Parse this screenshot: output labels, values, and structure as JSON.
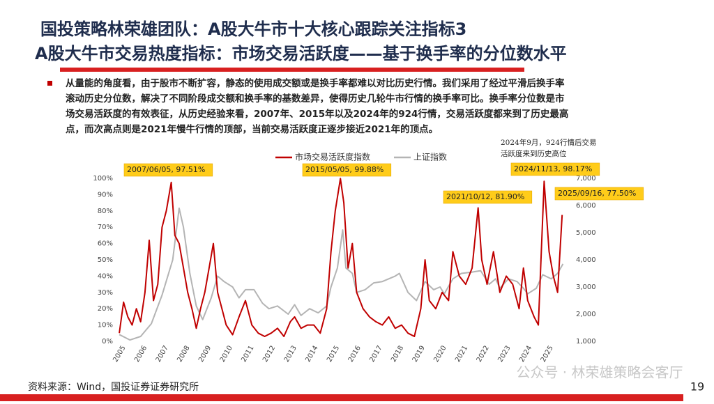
{
  "slide": {
    "title_lines": [
      "国投策略林荣雄团队：A股大牛市十大核心跟踪关注指标3",
      "A股大牛市交易热度指标：市场交易活跃度——基于换手率的分位数水平"
    ],
    "bullet_lines": [
      "从量能的角度看，由于股市不断扩容，静态的使用成交额或是换手率都难以对比历史行情。我们采用了经过平滑后换手率",
      "滚动历史分位数，解决了不同阶段成交额和换手率的基数差异，使得历史几轮牛市行情的换手率可比。换手率分位数是市",
      "场交易活跃度的有效表征，从历史经验来看，2007年、2015年以及2024年的924行情，交易活跃度都来到了历史最高",
      "点，而次高点则是2021年慢牛行情的顶部，当前交易活跃度正逐步接近2021年的顶点。"
    ],
    "source": "资料来源：Wind，国投证券证券研究所",
    "watermark": "公众号 · 林荣雄策略会客厅",
    "page_number": "19"
  },
  "chart_data": {
    "type": "line",
    "xlim": [
      2004.9,
      2025.9
    ],
    "xticks": [
      2005,
      2006,
      2007,
      2008,
      2009,
      2010,
      2011,
      2012,
      2013,
      2014,
      2015,
      2016,
      2017,
      2018,
      2019,
      2020,
      2021,
      2022,
      2023,
      2024,
      2025
    ],
    "ylim": [
      0,
      100
    ],
    "yticks": [
      {
        "value": 0,
        "label": "0%"
      },
      {
        "value": 10,
        "label": "10%"
      },
      {
        "value": 20,
        "label": "20%"
      },
      {
        "value": 30,
        "label": "30%"
      },
      {
        "value": 40,
        "label": "40%"
      },
      {
        "value": 50,
        "label": "50%"
      },
      {
        "value": 60,
        "label": "60%"
      },
      {
        "value": 70,
        "label": "70%"
      },
      {
        "value": 80,
        "label": "80%"
      },
      {
        "value": 90,
        "label": "90%"
      },
      {
        "value": 100,
        "label": "100%"
      }
    ],
    "y2lim": [
      1000,
      7000
    ],
    "y2ticks": [
      {
        "value": 1000,
        "label": "1,000"
      },
      {
        "value": 2000,
        "label": "2,000"
      },
      {
        "value": 3000,
        "label": "3,000"
      },
      {
        "value": 4000,
        "label": "4,000"
      },
      {
        "value": 5000,
        "label": "5,000"
      },
      {
        "value": 6000,
        "label": "6,000"
      },
      {
        "value": 7000,
        "label": "7,000"
      }
    ],
    "grid": false,
    "series": [
      {
        "name": "市场交易活跃度指数",
        "color": "#c00000",
        "axis": "y",
        "x": [
          2005.0,
          2005.2,
          2005.4,
          2005.6,
          2005.8,
          2006.0,
          2006.2,
          2006.4,
          2006.6,
          2006.8,
          2007.0,
          2007.2,
          2007.43,
          2007.6,
          2007.8,
          2008.0,
          2008.2,
          2008.4,
          2008.6,
          2008.8,
          2009.0,
          2009.2,
          2009.4,
          2009.6,
          2009.8,
          2010.0,
          2010.3,
          2010.6,
          2010.9,
          2011.2,
          2011.5,
          2011.8,
          2012.1,
          2012.4,
          2012.7,
          2013.0,
          2013.2,
          2013.5,
          2013.8,
          2014.1,
          2014.4,
          2014.7,
          2014.9,
          2015.1,
          2015.34,
          2015.5,
          2015.7,
          2015.9,
          2016.1,
          2016.4,
          2016.7,
          2017.0,
          2017.3,
          2017.6,
          2017.9,
          2018.2,
          2018.5,
          2018.8,
          2019.1,
          2019.3,
          2019.5,
          2019.8,
          2020.1,
          2020.4,
          2020.6,
          2020.9,
          2021.2,
          2021.5,
          2021.78,
          2021.95,
          2022.2,
          2022.5,
          2022.8,
          2023.1,
          2023.4,
          2023.7,
          2023.9,
          2024.1,
          2024.4,
          2024.6,
          2024.87,
          2025.1,
          2025.3,
          2025.5,
          2025.71
        ],
        "values": [
          5,
          24,
          15,
          10,
          20,
          12,
          30,
          62,
          25,
          35,
          70,
          80,
          97.51,
          65,
          60,
          45,
          30,
          20,
          8,
          20,
          30,
          45,
          60,
          30,
          20,
          10,
          4,
          15,
          25,
          10,
          5,
          3,
          5,
          8,
          3,
          12,
          15,
          8,
          10,
          10,
          5,
          20,
          55,
          80,
          99.88,
          85,
          45,
          60,
          30,
          20,
          15,
          12,
          10,
          15,
          8,
          10,
          5,
          3,
          20,
          50,
          25,
          20,
          30,
          25,
          55,
          40,
          35,
          45,
          81.9,
          50,
          35,
          55,
          30,
          40,
          35,
          20,
          45,
          25,
          15,
          10,
          98.17,
          55,
          40,
          30,
          77.5
        ]
      },
      {
        "name": "上证指数",
        "color": "#b4b4b4",
        "axis": "y2",
        "x": [
          2005.0,
          2005.5,
          2006.0,
          2006.5,
          2007.0,
          2007.5,
          2007.8,
          2008.0,
          2008.3,
          2008.6,
          2008.9,
          2009.3,
          2009.6,
          2009.9,
          2010.3,
          2010.6,
          2010.9,
          2011.3,
          2011.7,
          2012.0,
          2012.4,
          2012.9,
          2013.2,
          2013.5,
          2013.9,
          2014.3,
          2014.7,
          2014.9,
          2015.2,
          2015.45,
          2015.6,
          2015.9,
          2016.1,
          2016.5,
          2016.9,
          2017.3,
          2017.9,
          2018.1,
          2018.5,
          2018.9,
          2019.3,
          2019.7,
          2020.0,
          2020.2,
          2020.6,
          2021.0,
          2021.5,
          2021.9,
          2022.3,
          2022.6,
          2022.8,
          2023.2,
          2023.6,
          2023.9,
          2024.1,
          2024.5,
          2024.8,
          2025.2,
          2025.5,
          2025.75
        ],
        "values": [
          1250,
          1050,
          1180,
          1650,
          2700,
          4000,
          5900,
          5200,
          3500,
          2300,
          1800,
          2600,
          3400,
          3200,
          3000,
          2600,
          2900,
          2900,
          2400,
          2200,
          2300,
          2000,
          2350,
          1950,
          2200,
          2050,
          2300,
          3000,
          3700,
          5100,
          3700,
          3500,
          2800,
          2900,
          3150,
          3200,
          3400,
          3500,
          2800,
          2500,
          3200,
          2900,
          3000,
          2750,
          3300,
          3500,
          3550,
          3600,
          3100,
          3300,
          2950,
          3300,
          3200,
          2950,
          2750,
          2950,
          3450,
          3300,
          3500,
          3850
        ]
      }
    ],
    "annotations": [
      "2007/06/05, 97.51%",
      "2015/05/05, 99.88%",
      "2021/10/12, 81.90%",
      "2024/11/13, 98.17%",
      "2025/09/16, 77.50%"
    ],
    "note_lines": [
      "2024年9月，924行情后交易",
      "活跃度来到历史高位"
    ]
  }
}
